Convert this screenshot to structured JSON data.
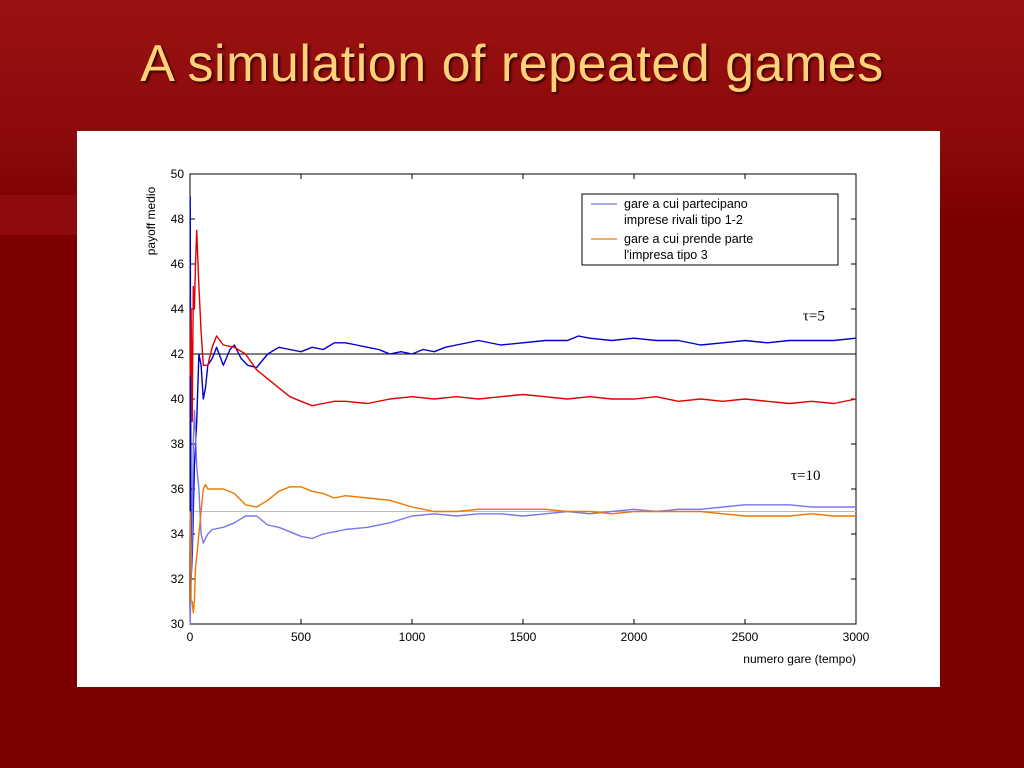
{
  "slide": {
    "title": "A simulation of repeated games"
  },
  "colors": {
    "blue": "#0000cc",
    "red": "#e00000",
    "lightblue": "#7777ee",
    "orange": "#ee7700"
  },
  "chart_data": {
    "type": "line",
    "title": "",
    "xlabel": "numero gare (tempo)",
    "ylabel": "payoff medio",
    "xlim": [
      0,
      3000
    ],
    "ylim": [
      30,
      50
    ],
    "xticks": [
      0,
      500,
      1000,
      1500,
      2000,
      2500,
      3000
    ],
    "yticks": [
      30,
      32,
      34,
      36,
      38,
      40,
      42,
      44,
      46,
      48,
      50
    ],
    "legend": {
      "placement": "top-right",
      "entries": [
        {
          "lines": [
            "gare a cui partecipano",
            "imprese rivali  tipo 1-2"
          ],
          "color": "#7777ee"
        },
        {
          "lines": [
            "gare a cui prende parte",
            "l'impresa tipo 3"
          ],
          "color": "#ee7700"
        }
      ]
    },
    "annotations": [
      {
        "text": "τ=5",
        "x": 2860,
        "y": 43.5
      },
      {
        "text": "τ=10",
        "x": 2840,
        "y": 36.4
      }
    ],
    "reference_lines": [
      {
        "y": 42,
        "color": "#000000"
      },
      {
        "y": 35,
        "color": "#bbbbbb"
      }
    ],
    "series": [
      {
        "color": "#0000cc",
        "x": [
          1,
          5,
          10,
          20,
          30,
          40,
          50,
          60,
          70,
          80,
          100,
          120,
          150,
          180,
          200,
          230,
          260,
          300,
          350,
          400,
          450,
          500,
          550,
          600,
          650,
          700,
          750,
          800,
          850,
          900,
          950,
          1000,
          1050,
          1100,
          1150,
          1200,
          1300,
          1400,
          1500,
          1600,
          1700,
          1750,
          1800,
          1900,
          2000,
          2100,
          2200,
          2300,
          2400,
          2500,
          2600,
          2700,
          2800,
          2900,
          3000
        ],
        "y": [
          49.0,
          32.0,
          33.0,
          37.0,
          39.0,
          42.0,
          41.5,
          40.0,
          40.5,
          41.5,
          41.8,
          42.3,
          41.5,
          42.2,
          42.4,
          41.8,
          41.5,
          41.4,
          42.0,
          42.3,
          42.2,
          42.1,
          42.3,
          42.2,
          42.5,
          42.5,
          42.4,
          42.3,
          42.2,
          42.0,
          42.1,
          42.0,
          42.2,
          42.1,
          42.3,
          42.4,
          42.6,
          42.4,
          42.5,
          42.6,
          42.6,
          42.8,
          42.7,
          42.6,
          42.7,
          42.6,
          42.6,
          42.4,
          42.5,
          42.6,
          42.5,
          42.6,
          42.6,
          42.6,
          42.7
        ]
      },
      {
        "color": "#e00000",
        "x": [
          1,
          5,
          10,
          15,
          20,
          25,
          30,
          40,
          50,
          60,
          80,
          100,
          120,
          150,
          200,
          250,
          300,
          350,
          400,
          450,
          500,
          550,
          600,
          650,
          700,
          800,
          900,
          1000,
          1100,
          1200,
          1300,
          1400,
          1500,
          1600,
          1700,
          1800,
          1900,
          2000,
          2100,
          2200,
          2300,
          2400,
          2500,
          2600,
          2700,
          2800,
          2900,
          3000
        ],
        "y": [
          41.0,
          44.0,
          39.0,
          45.0,
          44.0,
          46.0,
          47.5,
          45.0,
          43.0,
          41.5,
          41.5,
          42.3,
          42.8,
          42.4,
          42.3,
          42.0,
          41.3,
          40.9,
          40.5,
          40.1,
          39.9,
          39.7,
          39.8,
          39.9,
          39.9,
          39.8,
          40.0,
          40.1,
          40.0,
          40.1,
          40.0,
          40.1,
          40.2,
          40.1,
          40.0,
          40.1,
          40.0,
          40.0,
          40.1,
          39.9,
          40.0,
          39.9,
          40.0,
          39.9,
          39.8,
          39.9,
          39.8,
          40.0
        ]
      },
      {
        "color": "#7777ee",
        "x": [
          1,
          5,
          10,
          15,
          20,
          25,
          30,
          40,
          50,
          60,
          80,
          100,
          150,
          200,
          250,
          300,
          350,
          400,
          450,
          500,
          550,
          600,
          650,
          700,
          800,
          900,
          1000,
          1100,
          1200,
          1300,
          1400,
          1500,
          1600,
          1700,
          1800,
          1900,
          2000,
          2100,
          2200,
          2300,
          2400,
          2500,
          2600,
          2700,
          2800,
          2900,
          3000
        ],
        "y": [
          30.0,
          32.0,
          34.0,
          38.0,
          39.5,
          38.5,
          37.0,
          36.0,
          34.0,
          33.6,
          34.0,
          34.2,
          34.3,
          34.5,
          34.8,
          34.8,
          34.4,
          34.3,
          34.1,
          33.9,
          33.8,
          34.0,
          34.1,
          34.2,
          34.3,
          34.5,
          34.8,
          34.9,
          34.8,
          34.9,
          34.9,
          34.8,
          34.9,
          35.0,
          34.9,
          35.0,
          35.1,
          35.0,
          35.1,
          35.1,
          35.2,
          35.3,
          35.3,
          35.3,
          35.2,
          35.2,
          35.2
        ]
      },
      {
        "color": "#ee7700",
        "x": [
          1,
          5,
          10,
          15,
          20,
          25,
          30,
          40,
          50,
          60,
          70,
          80,
          100,
          150,
          200,
          250,
          300,
          350,
          400,
          450,
          500,
          550,
          600,
          650,
          700,
          800,
          900,
          1000,
          1100,
          1200,
          1300,
          1400,
          1500,
          1600,
          1700,
          1800,
          1900,
          2000,
          2100,
          2200,
          2300,
          2400,
          2500,
          2600,
          2700,
          2800,
          2900,
          3000
        ],
        "y": [
          35.0,
          31.0,
          31.0,
          30.5,
          31.0,
          32.5,
          33.0,
          34.0,
          35.0,
          36.0,
          36.2,
          36.0,
          36.0,
          36.0,
          35.8,
          35.3,
          35.2,
          35.5,
          35.9,
          36.1,
          36.1,
          35.9,
          35.8,
          35.6,
          35.7,
          35.6,
          35.5,
          35.2,
          35.0,
          35.0,
          35.1,
          35.1,
          35.1,
          35.1,
          35.0,
          35.0,
          34.9,
          35.0,
          35.0,
          35.0,
          35.0,
          34.9,
          34.8,
          34.8,
          34.8,
          34.9,
          34.8,
          34.8
        ]
      }
    ]
  }
}
